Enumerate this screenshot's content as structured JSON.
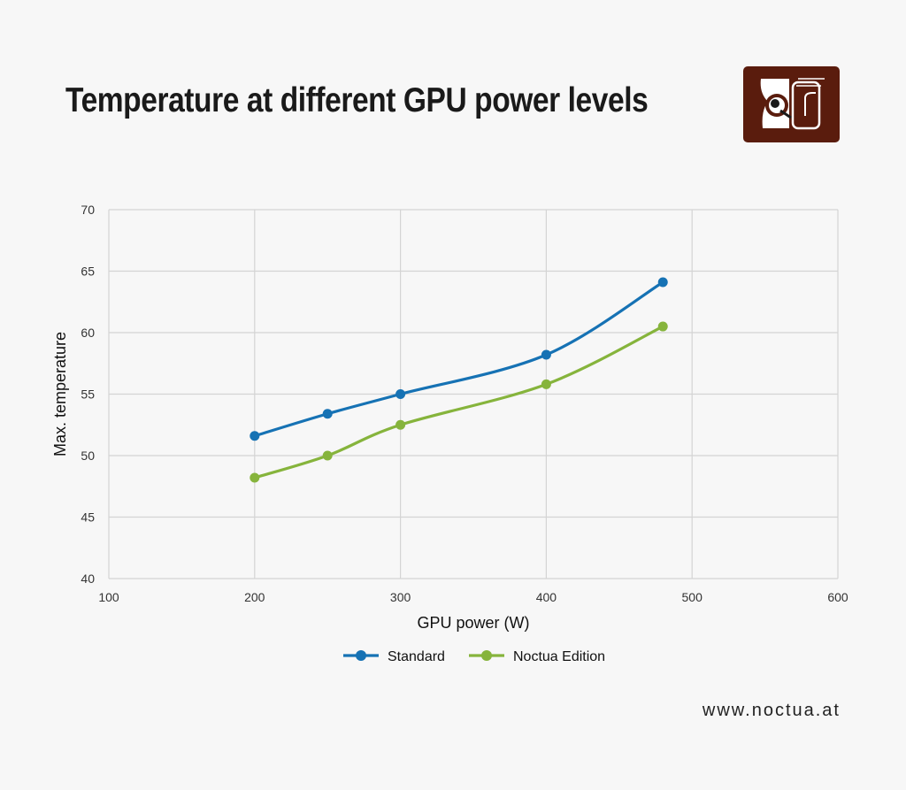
{
  "header": {
    "title": "Temperature at different GPU power levels"
  },
  "footer": {
    "website": "www.noctua.at"
  },
  "logo": {
    "icon": "noctua-owl-logo",
    "background": "#5a1c0d"
  },
  "chart_data": {
    "type": "line",
    "title": "Temperature at different GPU power levels",
    "xlabel": "GPU power (W)",
    "ylabel": "Max. temperature",
    "xlim": [
      100,
      600
    ],
    "ylim": [
      40,
      70
    ],
    "xticks": [
      100,
      200,
      300,
      400,
      500,
      600
    ],
    "yticks": [
      40,
      45,
      50,
      55,
      60,
      65,
      70
    ],
    "grid": true,
    "legend_position": "bottom",
    "series": [
      {
        "name": "Standard",
        "color": "#1672b4",
        "x": [
          200,
          250,
          300,
          400,
          480
        ],
        "y": [
          51.6,
          53.4,
          55.0,
          58.2,
          64.1
        ]
      },
      {
        "name": "Noctua Edition",
        "color": "#86b43c",
        "x": [
          200,
          250,
          300,
          400,
          480
        ],
        "y": [
          48.2,
          50.0,
          52.5,
          55.8,
          60.5
        ]
      }
    ]
  }
}
